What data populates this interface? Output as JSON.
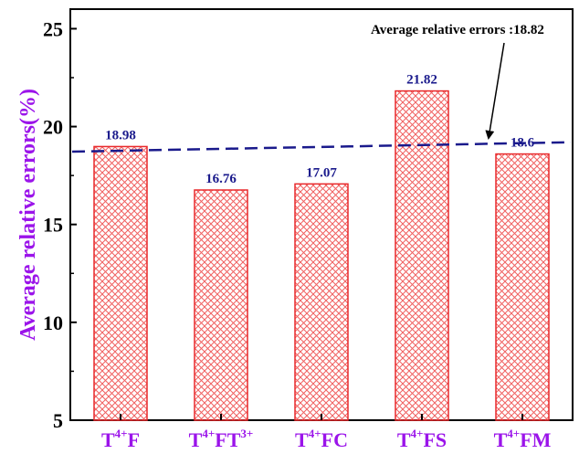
{
  "chart_data": {
    "type": "bar",
    "categories": [
      {
        "base": "T",
        "sup": "4+",
        "rest": "F",
        "sup2": ""
      },
      {
        "base": "T",
        "sup": "4+",
        "rest": "FT",
        "sup2": "3+"
      },
      {
        "base": "T",
        "sup": "4+",
        "rest": "FC",
        "sup2": ""
      },
      {
        "base": "T",
        "sup": "4+",
        "rest": "FS",
        "sup2": ""
      },
      {
        "base": "T",
        "sup": "4+",
        "rest": "FM",
        "sup2": ""
      }
    ],
    "values": [
      18.98,
      16.76,
      17.07,
      21.82,
      18.6
    ],
    "value_labels": [
      "18.98",
      "16.76",
      "17.07",
      "21.82",
      "18.6"
    ],
    "ylabel": "Average relative errors(%)",
    "ylim": [
      5,
      26
    ],
    "yticks": [
      5,
      10,
      15,
      20,
      25
    ],
    "ytick_labels": [
      "5",
      "10",
      "15",
      "20",
      "25"
    ],
    "trend_line": {
      "start_value": 18.72,
      "end_value": 19.2
    },
    "annotation": "Average relative errors :18.82",
    "colors": {
      "bar_edge": "#e8292b",
      "bar_hatch": "#f06060",
      "label_category": "#9b14ea",
      "label_value": "#1a1a8c",
      "trend_line": "#1a1a8c",
      "axis_label": "#9b14ea"
    }
  }
}
